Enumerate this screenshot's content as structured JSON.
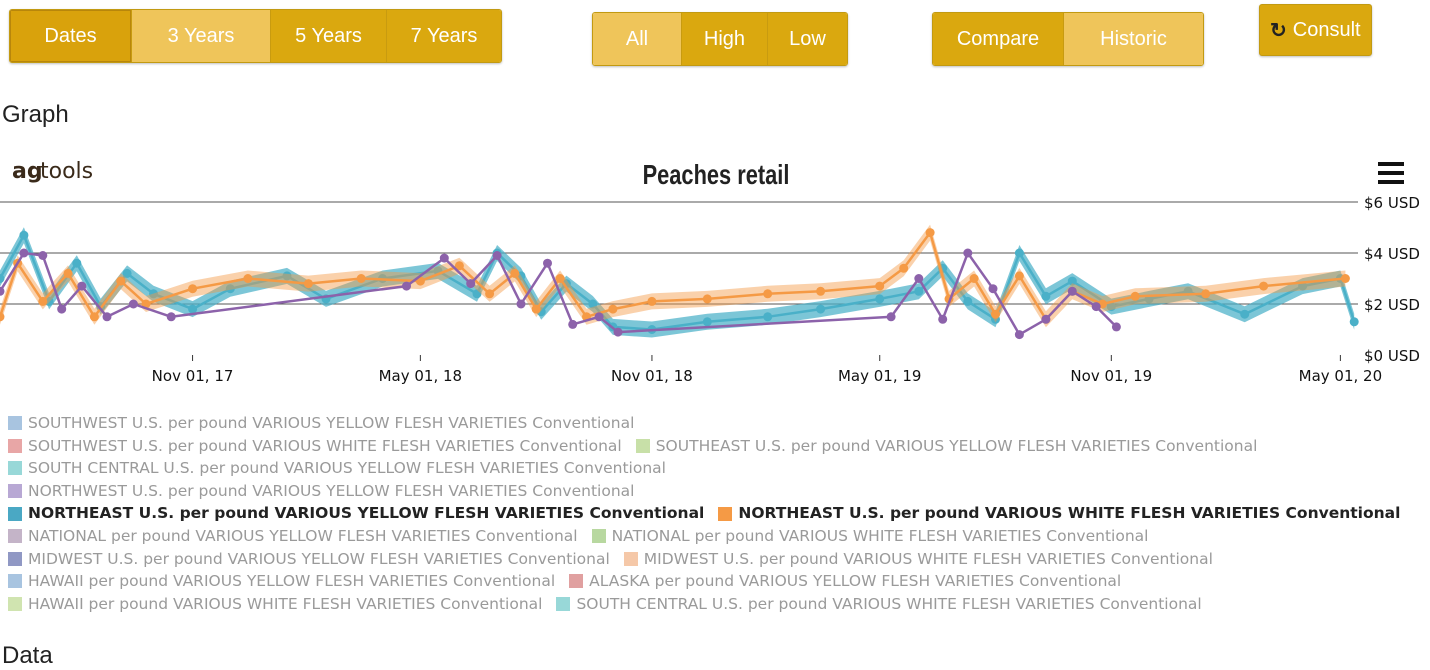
{
  "toolbar": {
    "range_buttons": [
      "Dates",
      "3 Years",
      "5 Years",
      "7 Years"
    ],
    "level_buttons": [
      "All",
      "High",
      "Low"
    ],
    "view_buttons": [
      "Compare",
      "Historic"
    ],
    "consult_label": "Consult",
    "consult_icon": "refresh-icon"
  },
  "headings": {
    "graph": "Graph",
    "data": "Data"
  },
  "brand": {
    "ag": "ag",
    "tools": "tools"
  },
  "menu_icon": "hamburger-menu-icon",
  "colors": {
    "button": "#daa80f",
    "button_active": "#efc55a",
    "northeast_yellow": "#4ab0c8",
    "northeast_white": "#f59a45",
    "northwest_yellow": "#8c62aa"
  },
  "chart_data": {
    "type": "line",
    "title": "Peaches retail",
    "xlabel": "",
    "ylabel": "",
    "x_ticks": [
      "Nov 01, 17",
      "May 01, 18",
      "Nov 01, 18",
      "May 01, 19",
      "Nov 01, 19",
      "May 01, 20"
    ],
    "y_ticks": [
      "$0 USD",
      "$2 USD",
      "$4 USD",
      "$6 USD"
    ],
    "ylim": [
      0,
      6
    ],
    "xlim": [
      "2017-06-01",
      "2020-05-15"
    ],
    "grid": true,
    "series": [
      {
        "name": "NORTHEAST U.S. per pound VARIOUS YELLOW FLESH VARIETIES Conventional",
        "x": [
          "2017-06-01",
          "2017-06-20",
          "2017-07-10",
          "2017-08-01",
          "2017-08-20",
          "2017-09-10",
          "2017-10-01",
          "2017-11-01",
          "2017-12-01",
          "2018-01-15",
          "2018-02-15",
          "2018-04-01",
          "2018-05-15",
          "2018-06-15",
          "2018-07-01",
          "2018-07-20",
          "2018-08-05",
          "2018-08-25",
          "2018-09-15",
          "2018-10-01",
          "2018-11-01",
          "2018-12-15",
          "2019-02-01",
          "2019-03-15",
          "2019-05-01",
          "2019-06-01",
          "2019-06-20",
          "2019-07-10",
          "2019-08-01",
          "2019-08-20",
          "2019-09-10",
          "2019-10-01",
          "2019-11-01",
          "2019-12-01",
          "2020-01-01",
          "2020-02-15",
          "2020-04-01",
          "2020-05-01",
          "2020-05-12"
        ],
        "y": [
          3.0,
          4.7,
          2.1,
          3.6,
          1.9,
          3.2,
          2.4,
          1.8,
          2.6,
          3.1,
          2.2,
          3.0,
          3.3,
          2.4,
          4.0,
          3.1,
          1.7,
          2.8,
          2.0,
          1.1,
          1.0,
          1.3,
          1.5,
          1.8,
          2.2,
          2.5,
          3.4,
          2.1,
          1.4,
          4.0,
          2.3,
          2.9,
          1.9,
          2.2,
          2.5,
          1.6,
          2.7,
          3.0,
          1.3
        ]
      },
      {
        "name": "NORTHEAST U.S. per pound VARIOUS WHITE FLESH VARIETIES Conventional",
        "x": [
          "2017-06-01",
          "2017-06-15",
          "2017-07-05",
          "2017-07-25",
          "2017-08-15",
          "2017-09-05",
          "2017-09-25",
          "2017-11-01",
          "2017-12-15",
          "2018-02-01",
          "2018-03-15",
          "2018-05-01",
          "2018-06-01",
          "2018-06-25",
          "2018-07-15",
          "2018-08-01",
          "2018-08-20",
          "2018-09-10",
          "2018-10-01",
          "2018-11-01",
          "2018-12-15",
          "2019-02-01",
          "2019-03-15",
          "2019-05-01",
          "2019-05-20",
          "2019-06-10",
          "2019-06-25",
          "2019-07-15",
          "2019-08-01",
          "2019-08-20",
          "2019-09-10",
          "2019-10-01",
          "2019-10-25",
          "2019-11-20",
          "2020-01-15",
          "2020-03-01",
          "2020-05-05"
        ],
        "y": [
          1.5,
          3.6,
          2.1,
          3.2,
          1.5,
          2.9,
          2.0,
          2.6,
          3.0,
          2.8,
          3.0,
          2.9,
          3.5,
          2.4,
          3.2,
          1.8,
          3.0,
          1.5,
          1.8,
          2.1,
          2.2,
          2.4,
          2.5,
          2.7,
          3.4,
          4.8,
          2.2,
          3.0,
          1.6,
          3.1,
          1.4,
          2.5,
          2.0,
          2.3,
          2.4,
          2.7,
          3.0
        ]
      },
      {
        "name": "NORTHWEST U.S. per pound VARIOUS YELLOW FLESH VARIETIES Conventional",
        "x": [
          "2017-06-01",
          "2017-06-20",
          "2017-07-05",
          "2017-07-20",
          "2017-08-05",
          "2017-08-25",
          "2017-09-15",
          "2017-10-15",
          "2018-04-20",
          "2018-05-20",
          "2018-06-10",
          "2018-07-01",
          "2018-07-20",
          "2018-08-10",
          "2018-08-30",
          "2018-09-20",
          "2018-10-05",
          "2019-05-10",
          "2019-06-01",
          "2019-06-20",
          "2019-07-10",
          "2019-07-30",
          "2019-08-20",
          "2019-09-10",
          "2019-10-01",
          "2019-10-20",
          "2019-11-05"
        ],
        "y": [
          2.5,
          4.0,
          3.9,
          1.8,
          2.7,
          1.5,
          2.0,
          1.5,
          2.7,
          3.8,
          2.8,
          3.9,
          2.0,
          3.6,
          1.2,
          1.5,
          0.9,
          1.5,
          3.0,
          1.4,
          4.0,
          2.6,
          0.8,
          1.4,
          2.5,
          1.9,
          1.1
        ]
      }
    ]
  },
  "legend": {
    "rows": [
      [
        {
          "label": "SOUTHWEST U.S. per pound VARIOUS YELLOW FLESH VARIETIES Conventional",
          "color": "#a8c4e0",
          "active": false
        }
      ],
      [
        {
          "label": "SOUTHWEST U.S. per pound VARIOUS WHITE FLESH VARIETIES Conventional",
          "color": "#e8a6a6",
          "active": false
        },
        {
          "label": "SOUTHEAST U.S. per pound VARIOUS YELLOW FLESH VARIETIES Conventional",
          "color": "#c8e0a8",
          "active": false
        }
      ],
      [
        {
          "label": "SOUTH CENTRAL U.S. per pound VARIOUS YELLOW FLESH VARIETIES Conventional",
          "color": "#98d8d8",
          "active": false
        }
      ],
      [
        {
          "label": "NORTHWEST U.S. per pound VARIOUS YELLOW FLESH VARIETIES Conventional",
          "color": "#b8a8d4",
          "active": false
        }
      ],
      [
        {
          "label": "NORTHEAST U.S. per pound VARIOUS YELLOW FLESH VARIETIES Conventional",
          "color": "#4aa8c4",
          "active": true
        },
        {
          "label": "NORTHEAST U.S. per pound VARIOUS WHITE FLESH VARIETIES Conventional",
          "color": "#f59a45",
          "active": true
        }
      ],
      [
        {
          "label": "NATIONAL per pound VARIOUS YELLOW FLESH VARIETIES Conventional",
          "color": "#c4b4c8",
          "active": false
        },
        {
          "label": "NATIONAL per pound VARIOUS WHITE FLESH VARIETIES Conventional",
          "color": "#b8d8a0",
          "active": false
        }
      ],
      [
        {
          "label": "MIDWEST U.S. per pound VARIOUS YELLOW FLESH VARIETIES Conventional",
          "color": "#9098c4",
          "active": false
        },
        {
          "label": "MIDWEST U.S. per pound VARIOUS WHITE FLESH VARIETIES Conventional",
          "color": "#f5c8a8",
          "active": false
        }
      ],
      [
        {
          "label": "HAWAII per pound VARIOUS YELLOW FLESH VARIETIES Conventional",
          "color": "#a8c4e0",
          "active": false
        },
        {
          "label": "ALASKA per pound VARIOUS YELLOW FLESH VARIETIES Conventional",
          "color": "#e0a0a0",
          "active": false
        }
      ],
      [
        {
          "label": "HAWAII per pound VARIOUS WHITE FLESH VARIETIES Conventional",
          "color": "#d0e4b0",
          "active": false
        },
        {
          "label": "SOUTH CENTRAL U.S. per pound VARIOUS WHITE FLESH VARIETIES Conventional",
          "color": "#98d8d8",
          "active": false
        }
      ]
    ]
  }
}
